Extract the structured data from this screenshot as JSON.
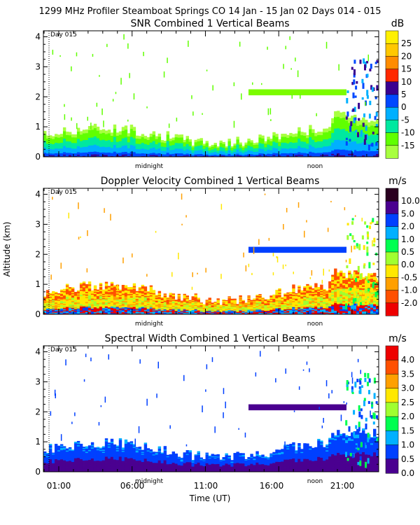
{
  "header": "1299 MHz Profiler  Steamboat Springs CO  14 Jan - 15 Jan 02 Days 014 - 015",
  "common": {
    "ylabel": "Altitude (km)",
    "xlabel": "Time (UT)",
    "day_marker": "Day 015",
    "midnight_label": "midnight",
    "noon_label": "noon",
    "ytick_labels": [
      "0",
      "1",
      "2",
      "3",
      "4"
    ],
    "xtick_labels": [
      "01:00",
      "06:00",
      "11:00",
      "16:00",
      "21:00"
    ]
  },
  "chart_data": [
    {
      "type": "heatmap",
      "title": "SNR Combined 1 Vertical Beams",
      "unit": "dB",
      "ylim": [
        0,
        4.2
      ],
      "colorbar": {
        "labels": [
          "25",
          "20",
          "15",
          "10",
          "5",
          "0",
          "-5",
          "-10",
          "-15"
        ],
        "colors": [
          "#FFF000",
          "#FFC800",
          "#FF8C00",
          "#FF2800",
          "#3A0090",
          "#0048FF",
          "#00B0FF",
          "#00E8A0",
          "#60FF00",
          "#A8FF40"
        ]
      }
    },
    {
      "type": "heatmap",
      "title": "Doppler Velocity Combined 1 Vertical Beams",
      "unit": "m/s",
      "ylim": [
        0,
        4.2
      ],
      "colorbar": {
        "labels": [
          "10.0",
          "5.0",
          "2.0",
          "1.0",
          "0.5",
          "0.0",
          "-0.5",
          "-1.0",
          "-2.0"
        ],
        "colors": [
          "#2A0020",
          "#4A0090",
          "#0040FF",
          "#00B0FF",
          "#00FF50",
          "#A0FF30",
          "#FFE800",
          "#FFA000",
          "#FF5000",
          "#EE0000"
        ]
      }
    },
    {
      "type": "heatmap",
      "title": "Spectral Width Combined 1 Vertical Beams",
      "unit": "m/s",
      "ylim": [
        0,
        4.2
      ],
      "colorbar": {
        "labels": [
          "4.0",
          "3.5",
          "3.0",
          "2.5",
          "2.0",
          "1.5",
          "1.0",
          "0.5",
          "0.0"
        ],
        "colors": [
          "#EE0000",
          "#FF5000",
          "#FFA000",
          "#FFE800",
          "#A0FF30",
          "#00FF50",
          "#00B0FF",
          "#0040FF",
          "#4A0090"
        ]
      }
    }
  ]
}
